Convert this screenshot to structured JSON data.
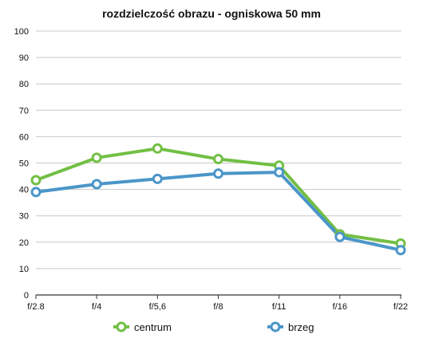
{
  "chart_data": {
    "type": "line",
    "title": "rozdzielczość obrazu - ogniskowa 50 mm",
    "xlabel": "",
    "ylabel": "",
    "categories": [
      "f/2.8",
      "f/4",
      "f/5,6",
      "f/8",
      "f/11",
      "f/16",
      "f/22"
    ],
    "ylim": [
      0,
      100
    ],
    "yticks": [
      0,
      10,
      20,
      30,
      40,
      50,
      60,
      70,
      80,
      90,
      100
    ],
    "grid": true,
    "legend_position": "bottom",
    "series": [
      {
        "name": "centrum",
        "color": "#72bf44",
        "values": [
          43.5,
          52,
          55.5,
          51.5,
          49,
          23,
          19.5
        ]
      },
      {
        "name": "brzeg",
        "color": "#4a96c9",
        "values": [
          39,
          42,
          44,
          46,
          46.5,
          22,
          17
        ]
      }
    ]
  }
}
